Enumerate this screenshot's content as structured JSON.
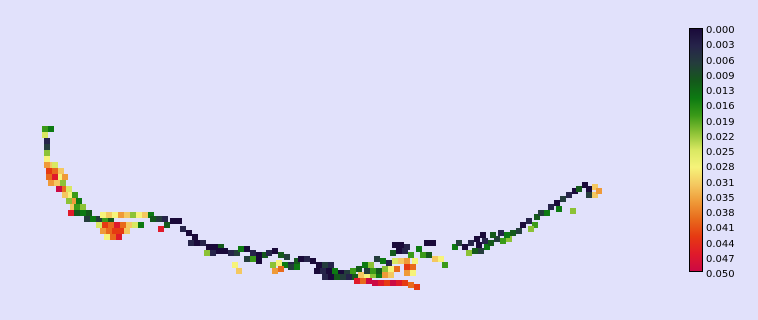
{
  "legend": {
    "ticks": [
      "0.000",
      "0.003",
      "0.006",
      "0.009",
      "0.013",
      "0.016",
      "0.019",
      "0.022",
      "0.025",
      "0.028",
      "0.031",
      "0.035",
      "0.038",
      "0.041",
      "0.044",
      "0.047",
      "0.050"
    ],
    "colors": [
      "#1a0a3a",
      "#26244a",
      "#243d3c",
      "#14591b",
      "#0d7a12",
      "#3a9a18",
      "#8cc236",
      "#d9e862",
      "#f6f37a",
      "#f4c860",
      "#ef9a38",
      "#e86a1c",
      "#e63a12",
      "#e01a2a",
      "#cc0a44"
    ]
  },
  "map": {
    "background": "#e1e1fb",
    "cells": [
      [
        42,
        126,
        5
      ],
      [
        42,
        132,
        7
      ],
      [
        48,
        126,
        4
      ],
      [
        44,
        138,
        1
      ],
      [
        44,
        144,
        2
      ],
      [
        44,
        150,
        6
      ],
      [
        44,
        156,
        8
      ],
      [
        48,
        162,
        9
      ],
      [
        44,
        162,
        10
      ],
      [
        52,
        162,
        7
      ],
      [
        46,
        168,
        12
      ],
      [
        52,
        168,
        11
      ],
      [
        58,
        168,
        9
      ],
      [
        46,
        174,
        11
      ],
      [
        52,
        174,
        13
      ],
      [
        58,
        174,
        8
      ],
      [
        62,
        174,
        10
      ],
      [
        48,
        180,
        10
      ],
      [
        54,
        180,
        9
      ],
      [
        60,
        180,
        6
      ],
      [
        56,
        186,
        14
      ],
      [
        62,
        186,
        11
      ],
      [
        66,
        186,
        7
      ],
      [
        62,
        192,
        9
      ],
      [
        68,
        192,
        8
      ],
      [
        72,
        192,
        5
      ],
      [
        66,
        198,
        6
      ],
      [
        72,
        198,
        10
      ],
      [
        76,
        198,
        4
      ],
      [
        70,
        204,
        9
      ],
      [
        74,
        204,
        5
      ],
      [
        80,
        204,
        6
      ],
      [
        68,
        210,
        13
      ],
      [
        74,
        210,
        3
      ],
      [
        80,
        210,
        4
      ],
      [
        86,
        210,
        3
      ],
      [
        84,
        216,
        2
      ],
      [
        90,
        216,
        4
      ],
      [
        96,
        216,
        2
      ],
      [
        102,
        216,
        5
      ],
      [
        108,
        216,
        3
      ],
      [
        100,
        212,
        8
      ],
      [
        106,
        212,
        9
      ],
      [
        112,
        212,
        8
      ],
      [
        118,
        212,
        10
      ],
      [
        124,
        212,
        9
      ],
      [
        130,
        212,
        6
      ],
      [
        136,
        212,
        8
      ],
      [
        142,
        212,
        9
      ],
      [
        148,
        212,
        4
      ],
      [
        96,
        222,
        7
      ],
      [
        102,
        222,
        12
      ],
      [
        108,
        222,
        11
      ],
      [
        114,
        222,
        13
      ],
      [
        120,
        222,
        11
      ],
      [
        126,
        222,
        9
      ],
      [
        132,
        222,
        7
      ],
      [
        138,
        222,
        4
      ],
      [
        100,
        228,
        10
      ],
      [
        106,
        228,
        11
      ],
      [
        112,
        228,
        12
      ],
      [
        118,
        228,
        12
      ],
      [
        124,
        228,
        9
      ],
      [
        110,
        234,
        11
      ],
      [
        116,
        234,
        13
      ],
      [
        104,
        234,
        8
      ],
      [
        150,
        216,
        3
      ],
      [
        156,
        216,
        2
      ],
      [
        162,
        216,
        1
      ],
      [
        170,
        218,
        0
      ],
      [
        176,
        218,
        0
      ],
      [
        158,
        226,
        13
      ],
      [
        164,
        222,
        3
      ],
      [
        180,
        226,
        1
      ],
      [
        186,
        230,
        0
      ],
      [
        192,
        234,
        0
      ],
      [
        188,
        240,
        1
      ],
      [
        194,
        240,
        0
      ],
      [
        200,
        240,
        1
      ],
      [
        206,
        244,
        0
      ],
      [
        212,
        244,
        0
      ],
      [
        218,
        244,
        3
      ],
      [
        204,
        250,
        6
      ],
      [
        210,
        250,
        1
      ],
      [
        216,
        248,
        0
      ],
      [
        222,
        248,
        0
      ],
      [
        228,
        250,
        1
      ],
      [
        234,
        250,
        2
      ],
      [
        238,
        246,
        4
      ],
      [
        244,
        246,
        0
      ],
      [
        250,
        250,
        1
      ],
      [
        256,
        252,
        0
      ],
      [
        262,
        252,
        3
      ],
      [
        232,
        262,
        8
      ],
      [
        236,
        268,
        9
      ],
      [
        244,
        256,
        2
      ],
      [
        250,
        256,
        5
      ],
      [
        256,
        258,
        0
      ],
      [
        266,
        250,
        1
      ],
      [
        272,
        248,
        0
      ],
      [
        278,
        252,
        3
      ],
      [
        284,
        254,
        2
      ],
      [
        270,
        262,
        6
      ],
      [
        276,
        260,
        8
      ],
      [
        282,
        262,
        4
      ],
      [
        288,
        262,
        1
      ],
      [
        294,
        258,
        3
      ],
      [
        272,
        268,
        10
      ],
      [
        278,
        266,
        11
      ],
      [
        288,
        264,
        2
      ],
      [
        294,
        264,
        4
      ],
      [
        298,
        256,
        0
      ],
      [
        304,
        256,
        1
      ],
      [
        310,
        258,
        0
      ],
      [
        316,
        262,
        0
      ],
      [
        322,
        262,
        2
      ],
      [
        328,
        262,
        1
      ],
      [
        314,
        268,
        0
      ],
      [
        320,
        268,
        1
      ],
      [
        326,
        268,
        0
      ],
      [
        332,
        268,
        4
      ],
      [
        338,
        270,
        0
      ],
      [
        344,
        270,
        2
      ],
      [
        322,
        274,
        1
      ],
      [
        328,
        274,
        0
      ],
      [
        334,
        274,
        3
      ],
      [
        340,
        274,
        2
      ],
      [
        346,
        274,
        1
      ],
      [
        352,
        274,
        3
      ],
      [
        350,
        268,
        5
      ],
      [
        356,
        266,
        3
      ],
      [
        362,
        262,
        4
      ],
      [
        368,
        262,
        6
      ],
      [
        354,
        278,
        13
      ],
      [
        360,
        278,
        11
      ],
      [
        366,
        278,
        14
      ],
      [
        372,
        280,
        14
      ],
      [
        378,
        280,
        13
      ],
      [
        384,
        280,
        12
      ],
      [
        390,
        280,
        14
      ],
      [
        396,
        280,
        13
      ],
      [
        402,
        280,
        12
      ],
      [
        408,
        282,
        11
      ],
      [
        358,
        272,
        9
      ],
      [
        364,
        272,
        8
      ],
      [
        370,
        272,
        6
      ],
      [
        376,
        272,
        4
      ],
      [
        382,
        272,
        10
      ],
      [
        388,
        272,
        9
      ],
      [
        364,
        268,
        2
      ],
      [
        370,
        268,
        5
      ],
      [
        376,
        268,
        3
      ],
      [
        382,
        266,
        6
      ],
      [
        388,
        266,
        8
      ],
      [
        394,
        266,
        11
      ],
      [
        374,
        256,
        2
      ],
      [
        380,
        258,
        4
      ],
      [
        386,
        260,
        1
      ],
      [
        392,
        258,
        7
      ],
      [
        398,
        258,
        9
      ],
      [
        404,
        258,
        10
      ],
      [
        390,
        250,
        3
      ],
      [
        396,
        248,
        0
      ],
      [
        402,
        248,
        1
      ],
      [
        408,
        252,
        5
      ],
      [
        412,
        258,
        8
      ],
      [
        404,
        264,
        12
      ],
      [
        410,
        264,
        11
      ],
      [
        404,
        270,
        10
      ],
      [
        410,
        270,
        8
      ],
      [
        414,
        284,
        12
      ],
      [
        392,
        242,
        0
      ],
      [
        398,
        242,
        0
      ],
      [
        404,
        244,
        1
      ],
      [
        416,
        246,
        4
      ],
      [
        424,
        240,
        0
      ],
      [
        430,
        240,
        0
      ],
      [
        426,
        252,
        3
      ],
      [
        420,
        252,
        5
      ],
      [
        432,
        256,
        9
      ],
      [
        438,
        256,
        8
      ],
      [
        442,
        262,
        5
      ],
      [
        452,
        244,
        4
      ],
      [
        456,
        240,
        2
      ],
      [
        462,
        244,
        0
      ],
      [
        468,
        240,
        1
      ],
      [
        474,
        236,
        0
      ],
      [
        480,
        232,
        0
      ],
      [
        466,
        250,
        6
      ],
      [
        472,
        248,
        3
      ],
      [
        478,
        248,
        2
      ],
      [
        484,
        244,
        4
      ],
      [
        476,
        242,
        0
      ],
      [
        482,
        238,
        1
      ],
      [
        488,
        240,
        3
      ],
      [
        494,
        236,
        2
      ],
      [
        500,
        238,
        5
      ],
      [
        506,
        236,
        6
      ],
      [
        490,
        232,
        3
      ],
      [
        498,
        230,
        1
      ],
      [
        504,
        232,
        4
      ],
      [
        510,
        230,
        3
      ],
      [
        516,
        228,
        2
      ],
      [
        520,
        222,
        0
      ],
      [
        526,
        218,
        1
      ],
      [
        532,
        222,
        5
      ],
      [
        528,
        226,
        6
      ],
      [
        534,
        214,
        3
      ],
      [
        538,
        210,
        2
      ],
      [
        544,
        210,
        4
      ],
      [
        548,
        204,
        1
      ],
      [
        554,
        200,
        0
      ],
      [
        556,
        206,
        4
      ],
      [
        560,
        196,
        2
      ],
      [
        566,
        192,
        1
      ],
      [
        572,
        188,
        0
      ],
      [
        570,
        208,
        6
      ],
      [
        576,
        186,
        3
      ],
      [
        582,
        182,
        0
      ],
      [
        586,
        186,
        0
      ],
      [
        592,
        184,
        9
      ],
      [
        586,
        192,
        2
      ],
      [
        592,
        192,
        9
      ],
      [
        596,
        188,
        10
      ]
    ]
  }
}
